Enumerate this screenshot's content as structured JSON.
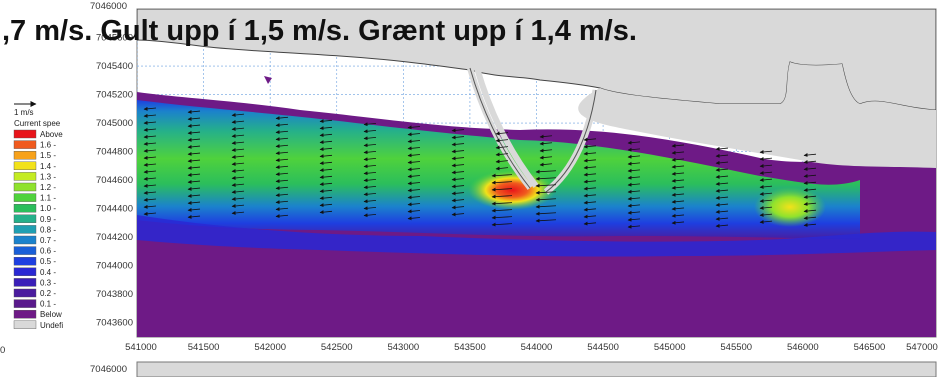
{
  "banner": ",7 m/s. Gult upp í 1,5 m/s.  Grænt upp í 1,4 m/s.",
  "top_y_label": "7046000",
  "bottom_y_label": "7046000",
  "left_edge_label": "0",
  "legend": {
    "scale_arrow_label": "1 m/s",
    "title": "Current spee",
    "entries": [
      {
        "label": "Above",
        "color": "#e8141a"
      },
      {
        "label": "1.6 -",
        "color": "#f05a1e"
      },
      {
        "label": "1.5 -",
        "color": "#f7a21b"
      },
      {
        "label": "1.4 -",
        "color": "#f2e21a"
      },
      {
        "label": "1.3 -",
        "color": "#c4ec22"
      },
      {
        "label": "1.2 -",
        "color": "#8fe22d"
      },
      {
        "label": "1.1 -",
        "color": "#4fd23c"
      },
      {
        "label": "1.0 -",
        "color": "#2bbe5c"
      },
      {
        "label": "0.9 -",
        "color": "#25b08a"
      },
      {
        "label": "0.8 -",
        "color": "#1f9fb2"
      },
      {
        "label": "0.7 -",
        "color": "#1b82cc"
      },
      {
        "label": "0.6 -",
        "color": "#1a5fd8"
      },
      {
        "label": "0.5 -",
        "color": "#1e3fe0"
      },
      {
        "label": "0.4 -",
        "color": "#2a28d4"
      },
      {
        "label": "0.3 -",
        "color": "#3a1fb8"
      },
      {
        "label": "0.2 -",
        "color": "#4a1c9e"
      },
      {
        "label": "0.1 -",
        "color": "#5a1a8c"
      },
      {
        "label": "Below",
        "color": "#6e1a86"
      },
      {
        "label": "Undefi",
        "color": "#d9d9d9"
      }
    ]
  },
  "chart_data": {
    "type": "heatmap",
    "title": "",
    "xlabel": "",
    "ylabel": "",
    "xlim": [
      541000,
      547000
    ],
    "ylim": [
      7043500,
      7045800
    ],
    "x_ticks": [
      541000,
      541500,
      542000,
      542500,
      543000,
      543500,
      544000,
      544500,
      545000,
      545500,
      546000,
      546500,
      547000
    ],
    "y_ticks": [
      7043600,
      7043800,
      7044000,
      7044200,
      7044400,
      7044600,
      7044800,
      7045000,
      7045200,
      7045400,
      7045600
    ],
    "grid": true,
    "land_color": "#d9d9d9",
    "low_speed_color": "#6e1a86",
    "core_speed_color": "#4fd23c",
    "max_speed_color": "#e8141a"
  }
}
